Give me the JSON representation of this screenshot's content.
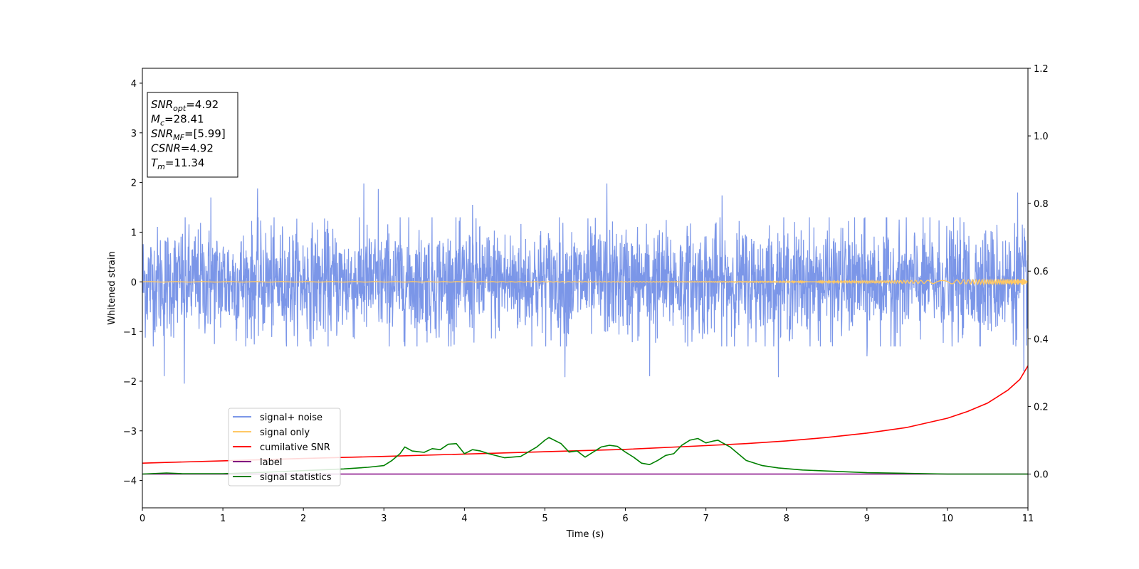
{
  "chart_data": {
    "type": "line",
    "title": "",
    "xlabel": "Time (s)",
    "ylabel": "Whitened strain",
    "y2label": "",
    "xlim": [
      0,
      11
    ],
    "ylim": [
      -4.55,
      4.3
    ],
    "y2lim": [
      -0.1,
      1.2
    ],
    "x_ticks": [
      0,
      1,
      2,
      3,
      4,
      5,
      6,
      7,
      8,
      9,
      10,
      11
    ],
    "y_ticks": [
      -4,
      -3,
      -2,
      -1,
      0,
      1,
      2,
      3,
      4
    ],
    "y2_ticks": [
      0.0,
      0.2,
      0.4,
      0.6,
      0.8,
      1.0,
      1.2
    ],
    "grid": false,
    "legend_placement": "lower-left",
    "series": [
      {
        "name": "signal+ noise",
        "axis": "left",
        "color": "#7b96e8",
        "style": "noise",
        "amplitude_envelope": 1.3,
        "peak_samples": [
          {
            "x": 0.27,
            "y": -1.9
          },
          {
            "x": 0.52,
            "y": -2.05
          },
          {
            "x": 0.85,
            "y": 1.7
          },
          {
            "x": 1.43,
            "y": 1.88
          },
          {
            "x": 2.75,
            "y": 1.98
          },
          {
            "x": 2.93,
            "y": 1.87
          },
          {
            "x": 4.1,
            "y": 1.55
          },
          {
            "x": 5.25,
            "y": -1.92
          },
          {
            "x": 5.77,
            "y": 1.98
          },
          {
            "x": 6.3,
            "y": -1.9
          },
          {
            "x": 7.2,
            "y": 1.74
          },
          {
            "x": 7.9,
            "y": -1.92
          },
          {
            "x": 9.0,
            "y": -1.5
          },
          {
            "x": 10.87,
            "y": 1.8
          },
          {
            "x": 10.95,
            "y": -1.8
          }
        ]
      },
      {
        "name": "signal only",
        "axis": "left",
        "color": "#ffc864",
        "style": "chirp",
        "amplitude_end": 0.06
      },
      {
        "name": "cumilative SNR",
        "axis": "right",
        "color": "#ff0000",
        "x": [
          0,
          1,
          2,
          3,
          4,
          5,
          6,
          7,
          7.5,
          8,
          8.5,
          9,
          9.5,
          10,
          10.25,
          10.5,
          10.75,
          10.9,
          11
        ],
        "values": [
          0.032,
          0.039,
          0.046,
          0.052,
          0.059,
          0.066,
          0.073,
          0.084,
          0.09,
          0.098,
          0.108,
          0.121,
          0.138,
          0.165,
          0.185,
          0.21,
          0.248,
          0.28,
          0.32
        ]
      },
      {
        "name": "label",
        "axis": "right",
        "color": "#800080",
        "x": [
          0,
          11
        ],
        "values": [
          0,
          0
        ]
      },
      {
        "name": "signal statistics",
        "axis": "right",
        "color": "#008000",
        "x": [
          0,
          0.3,
          0.5,
          1.0,
          1.5,
          2.0,
          2.5,
          2.8,
          3.0,
          3.1,
          3.2,
          3.26,
          3.35,
          3.5,
          3.6,
          3.7,
          3.8,
          3.9,
          4.0,
          4.1,
          4.2,
          4.3,
          4.5,
          4.7,
          4.9,
          5.0,
          5.05,
          5.2,
          5.3,
          5.4,
          5.5,
          5.6,
          5.7,
          5.8,
          5.9,
          6.0,
          6.1,
          6.2,
          6.3,
          6.4,
          6.5,
          6.6,
          6.7,
          6.8,
          6.9,
          7.0,
          7.1,
          7.15,
          7.2,
          7.3,
          7.4,
          7.5,
          7.7,
          7.9,
          8.2,
          8.6,
          9.0,
          9.5,
          10.0,
          11.0
        ],
        "values": [
          0.0,
          0.003,
          0.001,
          0.001,
          0.005,
          0.01,
          0.015,
          0.02,
          0.025,
          0.04,
          0.06,
          0.08,
          0.068,
          0.064,
          0.075,
          0.072,
          0.088,
          0.09,
          0.06,
          0.072,
          0.068,
          0.06,
          0.048,
          0.052,
          0.08,
          0.1,
          0.108,
          0.09,
          0.065,
          0.068,
          0.05,
          0.065,
          0.08,
          0.085,
          0.082,
          0.065,
          0.05,
          0.032,
          0.028,
          0.04,
          0.055,
          0.06,
          0.085,
          0.1,
          0.105,
          0.092,
          0.098,
          0.1,
          0.093,
          0.08,
          0.06,
          0.04,
          0.025,
          0.018,
          0.012,
          0.008,
          0.004,
          0.002,
          0.0,
          0.0
        ]
      }
    ],
    "annotation": {
      "lines": [
        {
          "main": "SNR",
          "sub": "opt",
          "value": "=4.92"
        },
        {
          "main": "M",
          "sub": "c",
          "value": "=28.41"
        },
        {
          "main": "SNR",
          "sub": "MF",
          "value": "=[5.99]"
        },
        {
          "main": "CSNR",
          "sub": "",
          "value": "=4.92"
        },
        {
          "main": "T",
          "sub": "m",
          "value": "=11.34"
        }
      ]
    }
  }
}
